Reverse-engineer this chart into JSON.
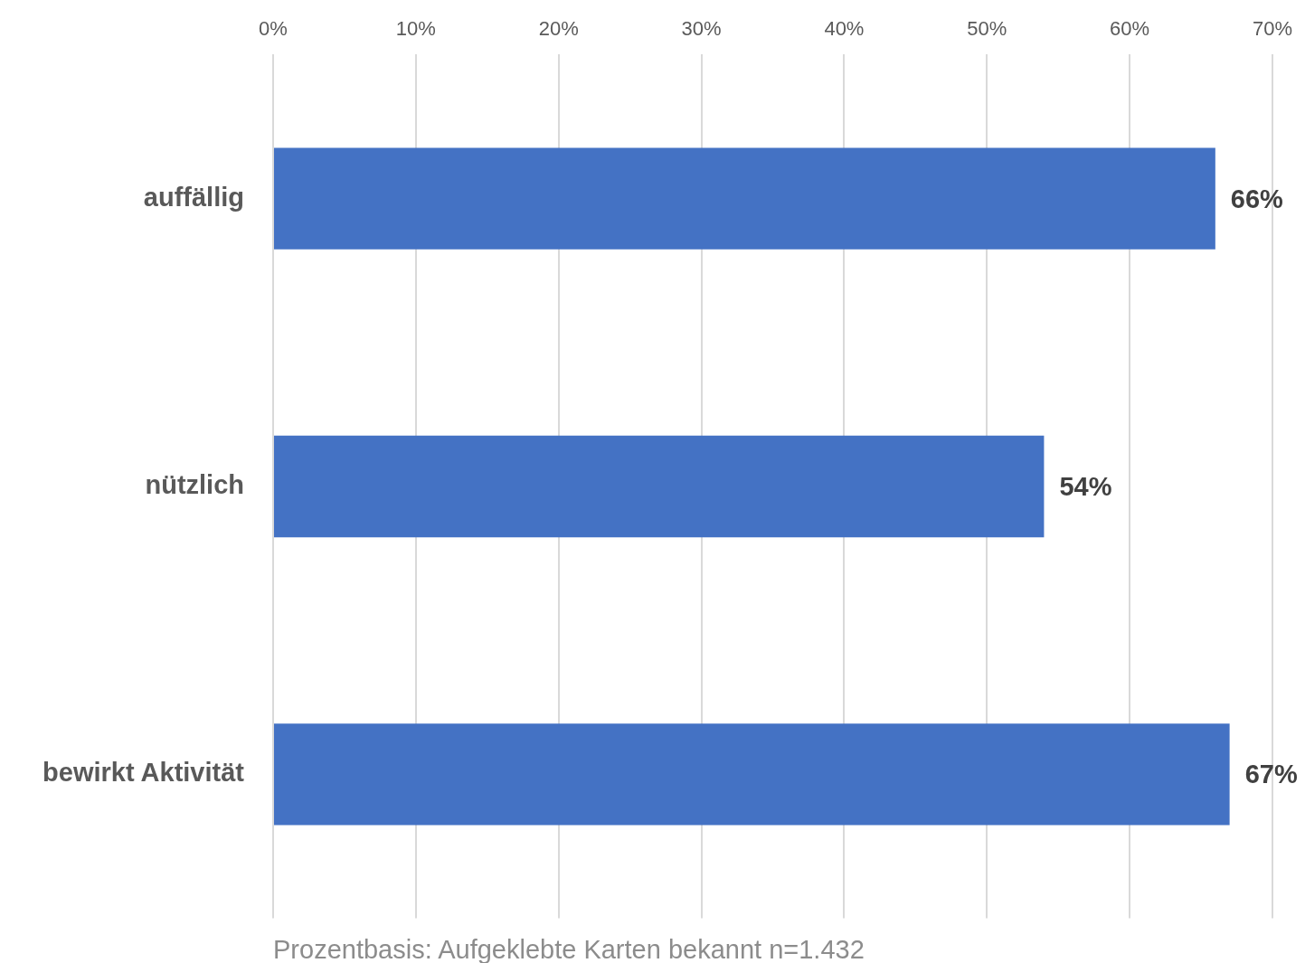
{
  "chart_data": {
    "type": "bar",
    "orientation": "horizontal",
    "categories": [
      "auffällig",
      "nützlich",
      "bewirkt Aktivität"
    ],
    "values": [
      66,
      54,
      67
    ],
    "color": "#4472c4",
    "value_labels": [
      "66%",
      "54%",
      "67%"
    ],
    "xlim": [
      0,
      70
    ],
    "xticks": [
      {
        "value": 0,
        "label": "0%"
      },
      {
        "value": 10,
        "label": "10%"
      },
      {
        "value": 20,
        "label": "20%"
      },
      {
        "value": 30,
        "label": "30%"
      },
      {
        "value": 40,
        "label": "40%"
      },
      {
        "value": 50,
        "label": "50%"
      },
      {
        "value": 60,
        "label": "60%"
      },
      {
        "value": 70,
        "label": "70%"
      }
    ],
    "grid": "x",
    "legend": false,
    "annotations": [
      "Prozentbasis: Aufgeklebte Karten bekannt n=1.432"
    ]
  }
}
